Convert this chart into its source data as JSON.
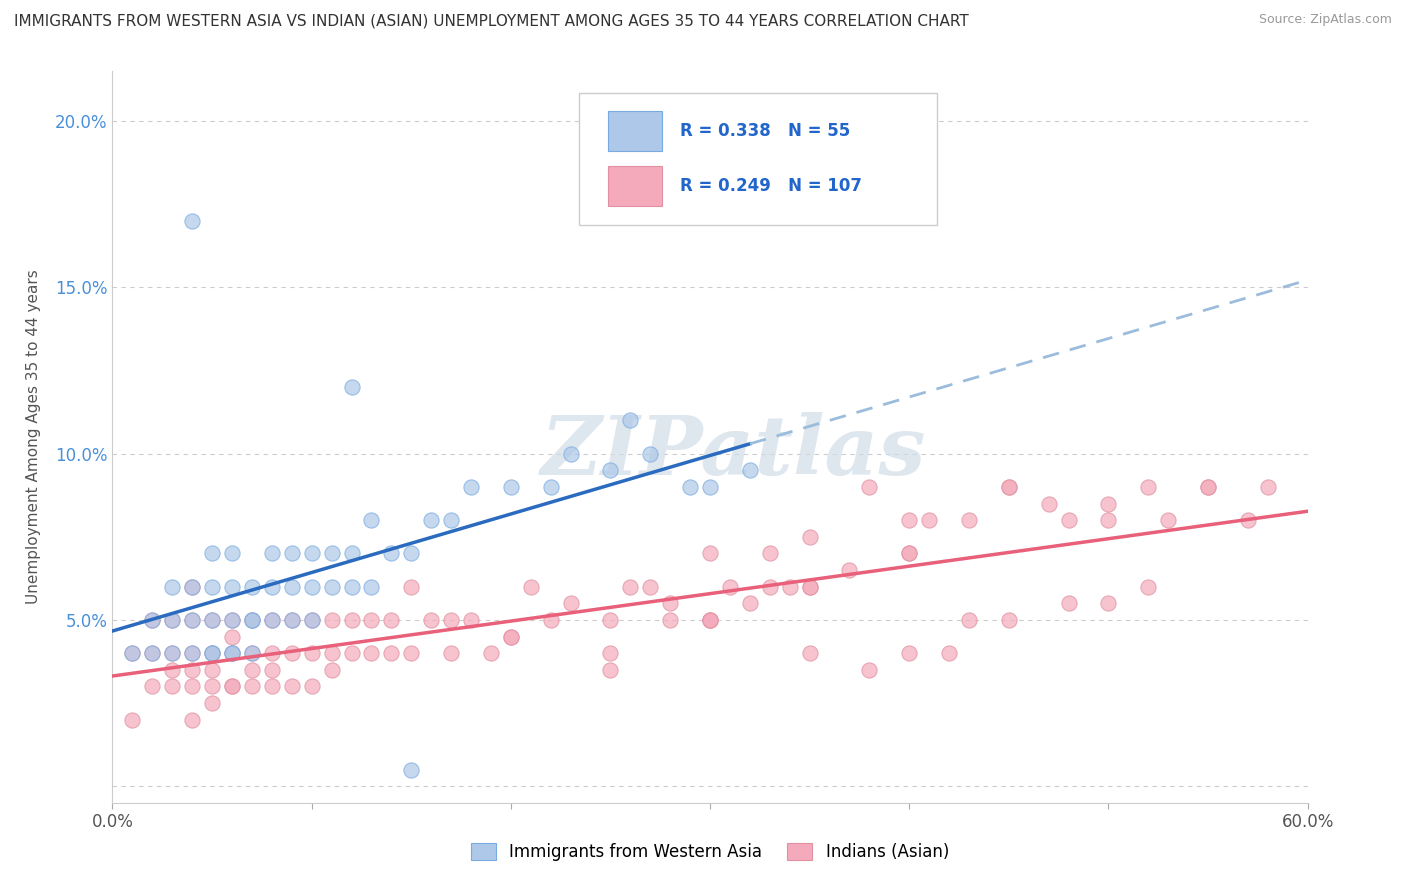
{
  "title": "IMMIGRANTS FROM WESTERN ASIA VS INDIAN (ASIAN) UNEMPLOYMENT AMONG AGES 35 TO 44 YEARS CORRELATION CHART",
  "source": "Source: ZipAtlas.com",
  "ylabel": "Unemployment Among Ages 35 to 44 years",
  "xlim": [
    0.0,
    0.6
  ],
  "ylim": [
    -0.005,
    0.215
  ],
  "yticks": [
    0.0,
    0.05,
    0.1,
    0.15,
    0.2
  ],
  "ytick_labels": [
    "",
    "5.0%",
    "10.0%",
    "15.0%",
    "20.0%"
  ],
  "blue_R": 0.338,
  "blue_N": 55,
  "pink_R": 0.249,
  "pink_N": 107,
  "legend_blue_label": "Immigrants from Western Asia",
  "legend_pink_label": "Indians (Asian)",
  "blue_color": "#adc8e8",
  "pink_color": "#f4aabb",
  "blue_line_color": "#2b6bbf",
  "pink_line_color": "#e8607a",
  "blue_dash_color": "#9bbcdc",
  "watermark_color": "#d0dce8",
  "background_color": "#ffffff",
  "grid_color": "#cccccc",
  "blue_scatter_x": [
    0.01,
    0.02,
    0.02,
    0.03,
    0.03,
    0.03,
    0.04,
    0.04,
    0.04,
    0.04,
    0.05,
    0.05,
    0.05,
    0.05,
    0.05,
    0.06,
    0.06,
    0.06,
    0.06,
    0.06,
    0.07,
    0.07,
    0.07,
    0.07,
    0.08,
    0.08,
    0.08,
    0.09,
    0.09,
    0.09,
    0.1,
    0.1,
    0.1,
    0.11,
    0.11,
    0.12,
    0.12,
    0.12,
    0.13,
    0.13,
    0.14,
    0.15,
    0.16,
    0.17,
    0.18,
    0.2,
    0.22,
    0.23,
    0.25,
    0.26,
    0.27,
    0.29,
    0.3,
    0.32,
    0.15
  ],
  "blue_scatter_y": [
    0.04,
    0.04,
    0.05,
    0.04,
    0.05,
    0.06,
    0.04,
    0.05,
    0.06,
    0.17,
    0.04,
    0.05,
    0.06,
    0.07,
    0.04,
    0.04,
    0.05,
    0.06,
    0.07,
    0.04,
    0.05,
    0.06,
    0.04,
    0.05,
    0.05,
    0.06,
    0.07,
    0.05,
    0.06,
    0.07,
    0.05,
    0.06,
    0.07,
    0.06,
    0.07,
    0.06,
    0.07,
    0.12,
    0.06,
    0.08,
    0.07,
    0.07,
    0.08,
    0.08,
    0.09,
    0.09,
    0.09,
    0.1,
    0.095,
    0.11,
    0.1,
    0.09,
    0.09,
    0.095,
    0.005
  ],
  "pink_scatter_x": [
    0.01,
    0.01,
    0.02,
    0.02,
    0.02,
    0.03,
    0.03,
    0.03,
    0.03,
    0.04,
    0.04,
    0.04,
    0.04,
    0.04,
    0.04,
    0.05,
    0.05,
    0.05,
    0.05,
    0.05,
    0.06,
    0.06,
    0.06,
    0.06,
    0.06,
    0.07,
    0.07,
    0.07,
    0.07,
    0.08,
    0.08,
    0.08,
    0.08,
    0.09,
    0.09,
    0.09,
    0.1,
    0.1,
    0.1,
    0.11,
    0.11,
    0.11,
    0.12,
    0.12,
    0.13,
    0.13,
    0.14,
    0.14,
    0.15,
    0.15,
    0.16,
    0.17,
    0.17,
    0.18,
    0.19,
    0.2,
    0.21,
    0.22,
    0.23,
    0.25,
    0.26,
    0.27,
    0.28,
    0.3,
    0.31,
    0.32,
    0.33,
    0.34,
    0.35,
    0.37,
    0.38,
    0.4,
    0.41,
    0.43,
    0.45,
    0.47,
    0.48,
    0.5,
    0.52,
    0.53,
    0.55,
    0.57,
    0.58,
    0.2,
    0.25,
    0.28,
    0.3,
    0.33,
    0.35,
    0.38,
    0.4,
    0.42,
    0.45,
    0.48,
    0.5,
    0.52,
    0.3,
    0.35,
    0.4,
    0.45,
    0.5,
    0.55,
    0.25,
    0.3,
    0.35,
    0.4,
    0.43
  ],
  "pink_scatter_y": [
    0.04,
    0.02,
    0.04,
    0.03,
    0.05,
    0.03,
    0.04,
    0.05,
    0.035,
    0.03,
    0.04,
    0.05,
    0.06,
    0.02,
    0.035,
    0.03,
    0.04,
    0.05,
    0.035,
    0.025,
    0.03,
    0.04,
    0.05,
    0.03,
    0.045,
    0.03,
    0.04,
    0.05,
    0.035,
    0.04,
    0.035,
    0.05,
    0.03,
    0.03,
    0.04,
    0.05,
    0.03,
    0.04,
    0.05,
    0.04,
    0.05,
    0.035,
    0.04,
    0.05,
    0.04,
    0.05,
    0.04,
    0.05,
    0.04,
    0.06,
    0.05,
    0.05,
    0.04,
    0.05,
    0.04,
    0.045,
    0.06,
    0.05,
    0.055,
    0.05,
    0.06,
    0.06,
    0.055,
    0.05,
    0.06,
    0.055,
    0.07,
    0.06,
    0.06,
    0.065,
    0.09,
    0.07,
    0.08,
    0.08,
    0.09,
    0.085,
    0.08,
    0.08,
    0.09,
    0.08,
    0.09,
    0.08,
    0.09,
    0.045,
    0.04,
    0.05,
    0.05,
    0.06,
    0.04,
    0.035,
    0.04,
    0.04,
    0.05,
    0.055,
    0.055,
    0.06,
    0.07,
    0.075,
    0.08,
    0.09,
    0.085,
    0.09,
    0.035,
    0.05,
    0.06,
    0.07,
    0.05
  ]
}
